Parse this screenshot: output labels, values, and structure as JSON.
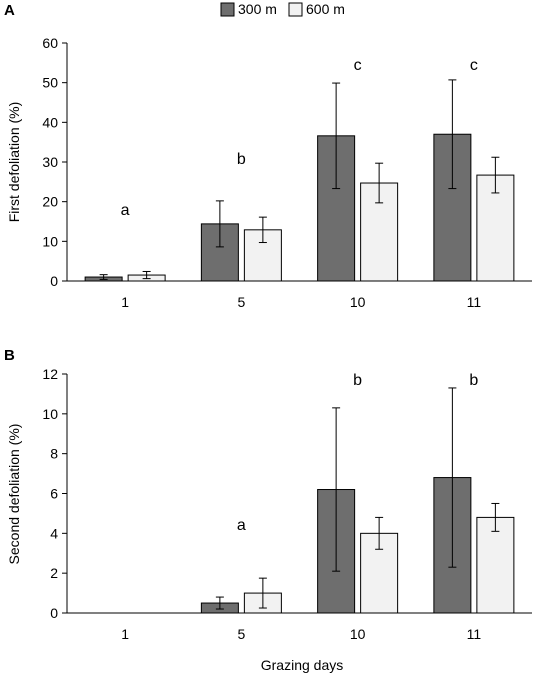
{
  "legend": {
    "items": [
      {
        "label": "300 m",
        "color": "#6e6e6e"
      },
      {
        "label": "600 m",
        "color": "#f2f2f2"
      }
    ],
    "placement": "top-center"
  },
  "xlabel_shared": "Grazing days",
  "chart_data": [
    {
      "type": "bar",
      "panel_label": "A",
      "categories": [
        "1",
        "5",
        "10",
        "11"
      ],
      "ylabel": "First defoliation (%)",
      "ylim": [
        0,
        60
      ],
      "yticks": [
        0,
        10,
        20,
        30,
        40,
        50,
        60
      ],
      "series": [
        {
          "name": "300 m",
          "values": [
            1.0,
            14.4,
            36.6,
            37.0
          ],
          "errors": [
            0.6,
            5.8,
            13.3,
            13.7
          ]
        },
        {
          "name": "600 m",
          "values": [
            1.5,
            12.9,
            24.7,
            26.7
          ],
          "errors": [
            0.9,
            3.2,
            5.0,
            4.5
          ]
        }
      ],
      "significance_letters": [
        "a",
        "b",
        "c",
        "c"
      ],
      "grid": false
    },
    {
      "type": "bar",
      "panel_label": "B",
      "categories": [
        "1",
        "5",
        "10",
        "11"
      ],
      "ylabel": "Second defoliation  (%)",
      "ylim": [
        0,
        12
      ],
      "yticks": [
        0,
        2,
        4,
        6,
        8,
        10,
        12
      ],
      "series": [
        {
          "name": "300 m",
          "values": [
            0,
            0.5,
            6.2,
            6.8
          ],
          "errors": [
            0,
            0.3,
            4.1,
            4.5
          ]
        },
        {
          "name": "600 m",
          "values": [
            0,
            1.0,
            4.0,
            4.8
          ],
          "errors": [
            0,
            0.75,
            0.8,
            0.7
          ]
        }
      ],
      "significance_letters": [
        "",
        "a",
        "b",
        "b"
      ],
      "grid": false
    }
  ]
}
